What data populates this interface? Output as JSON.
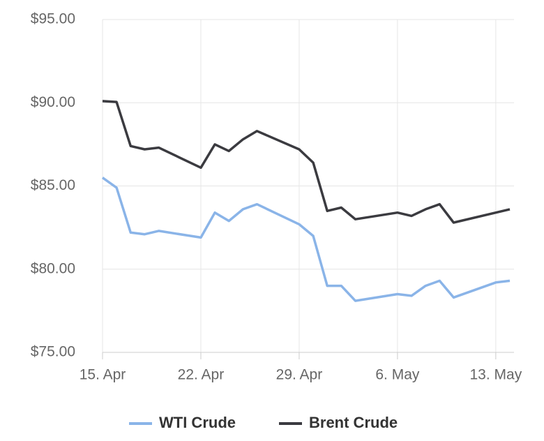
{
  "chart_data": {
    "type": "line",
    "x": [
      "15. Apr",
      "16. Apr",
      "17. Apr",
      "18. Apr",
      "19. Apr",
      "22. Apr",
      "23. Apr",
      "24. Apr",
      "25. Apr",
      "26. Apr",
      "29. Apr",
      "30. Apr",
      "1. May",
      "2. May",
      "3. May",
      "6. May",
      "7. May",
      "8. May",
      "9. May",
      "10. May",
      "13. May",
      "14. May"
    ],
    "xlim": [
      "15. Apr",
      "14. May"
    ],
    "xticks": [
      "15. Apr",
      "22. Apr",
      "29. Apr",
      "6. May",
      "13. May"
    ],
    "ylim": [
      75,
      95
    ],
    "yticks": [
      {
        "value": 75,
        "label": "$75.00"
      },
      {
        "value": 80,
        "label": "$80.00"
      },
      {
        "value": 85,
        "label": "$85.00"
      },
      {
        "value": 90,
        "label": "$90.00"
      },
      {
        "value": 95,
        "label": "$95.00"
      }
    ],
    "grid": true,
    "legend": "bottom",
    "series": [
      {
        "name": "WTI Crude",
        "color": "#8ab4e8",
        "values": [
          85.5,
          84.9,
          82.2,
          82.1,
          82.3,
          81.9,
          83.4,
          82.9,
          83.6,
          83.9,
          82.7,
          82.0,
          79.0,
          79.0,
          78.1,
          78.5,
          78.4,
          79.0,
          79.3,
          78.3,
          79.2,
          79.3
        ]
      },
      {
        "name": "Brent Crude",
        "color": "#3b3b40",
        "values": [
          90.1,
          90.05,
          87.4,
          87.2,
          87.3,
          86.1,
          87.5,
          87.1,
          87.8,
          88.3,
          87.2,
          86.4,
          83.5,
          83.7,
          83.0,
          83.4,
          83.2,
          83.6,
          83.9,
          82.8,
          83.4,
          83.6
        ]
      }
    ]
  }
}
